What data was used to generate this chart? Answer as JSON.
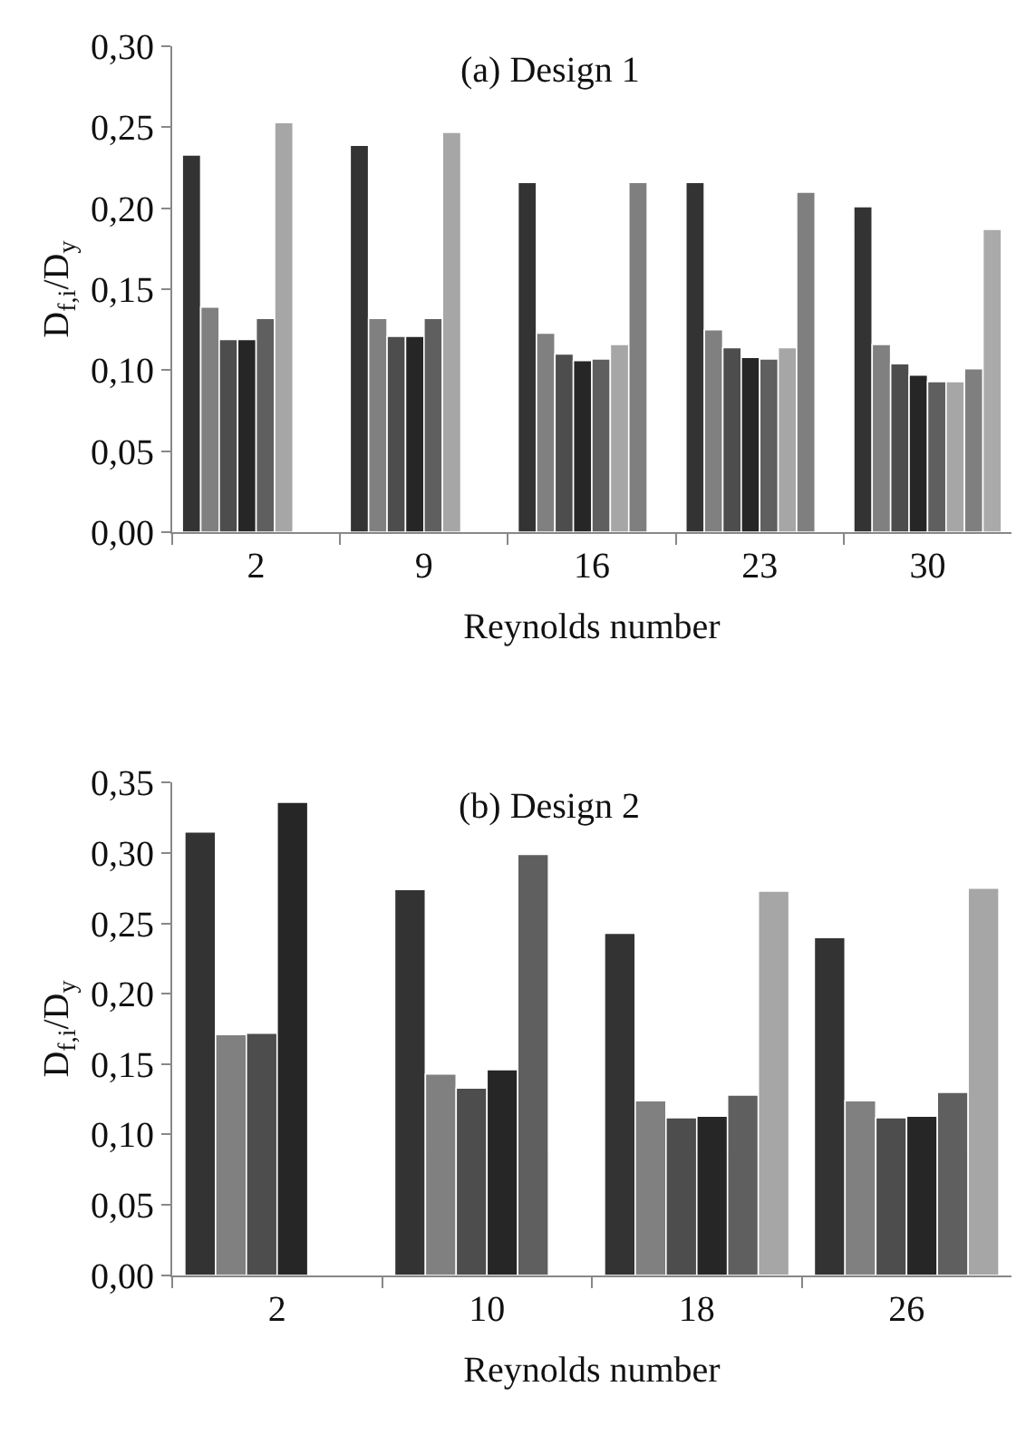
{
  "chart_data": [
    {
      "type": "bar",
      "title": "(a) Design 1",
      "xlabel": "Reynolds number",
      "ylabel": "D$_{f,i}$/D$_{y}$",
      "categories": [
        "2",
        "9",
        "16",
        "23",
        "30"
      ],
      "ylim": [
        0,
        0.3
      ],
      "yticks": [
        {
          "value": 0,
          "label": "0,00"
        },
        {
          "value": 0.05,
          "label": "0,05"
        },
        {
          "value": 0.1,
          "label": "0,10"
        },
        {
          "value": 0.15,
          "label": "0,15"
        },
        {
          "value": 0.2,
          "label": "0,20"
        },
        {
          "value": 0.25,
          "label": "0,25"
        },
        {
          "value": 0.3,
          "label": "0,30"
        }
      ],
      "series": [
        {
          "color": "#333333",
          "values": [
            0.233,
            0.239,
            0.216,
            0.216,
            0.201
          ]
        },
        {
          "color": "#808080",
          "values": [
            0.139,
            0.132,
            0.123,
            0.125,
            0.116
          ]
        },
        {
          "color": "#4d4d4d",
          "values": [
            0.119,
            0.121,
            0.11,
            0.114,
            0.104
          ]
        },
        {
          "color": "#262626",
          "values": [
            0.119,
            0.121,
            0.106,
            0.108,
            0.097
          ]
        },
        {
          "color": "#5f5f5f",
          "values": [
            0.132,
            0.132,
            0.107,
            0.107,
            0.093
          ]
        },
        {
          "color": "#a6a6a6",
          "values": [
            0.253,
            0.247,
            0.116,
            0.114,
            0.093
          ]
        },
        {
          "color": "#7f7f7f",
          "values": [
            null,
            null,
            0.216,
            0.21,
            0.101
          ]
        },
        {
          "color": "#aaaaaa",
          "values": [
            null,
            null,
            null,
            null,
            0.187
          ]
        }
      ]
    },
    {
      "type": "bar",
      "title": "(b) Design 2",
      "xlabel": "Reynolds number",
      "ylabel": "D$_{f,i}$/D$_{y}$",
      "categories": [
        "2",
        "10",
        "18",
        "26"
      ],
      "ylim": [
        0,
        0.35
      ],
      "yticks": [
        {
          "value": 0,
          "label": "0,00"
        },
        {
          "value": 0.05,
          "label": "0,05"
        },
        {
          "value": 0.1,
          "label": "0,10"
        },
        {
          "value": 0.15,
          "label": "0,15"
        },
        {
          "value": 0.2,
          "label": "0,20"
        },
        {
          "value": 0.25,
          "label": "0,25"
        },
        {
          "value": 0.3,
          "label": "0,30"
        },
        {
          "value": 0.35,
          "label": "0,35"
        }
      ],
      "series": [
        {
          "color": "#333333",
          "values": [
            0.315,
            0.274,
            0.243,
            0.24
          ]
        },
        {
          "color": "#808080",
          "values": [
            0.171,
            0.143,
            0.124,
            0.124
          ]
        },
        {
          "color": "#4d4d4d",
          "values": [
            0.172,
            0.133,
            0.112,
            0.112
          ]
        },
        {
          "color": "#262626",
          "values": [
            0.336,
            0.146,
            0.113,
            0.113
          ]
        },
        {
          "color": "#5f5f5f",
          "values": [
            null,
            0.299,
            0.128,
            0.13
          ]
        },
        {
          "color": "#a6a6a6",
          "values": [
            null,
            null,
            0.273,
            0.275
          ]
        }
      ]
    }
  ]
}
